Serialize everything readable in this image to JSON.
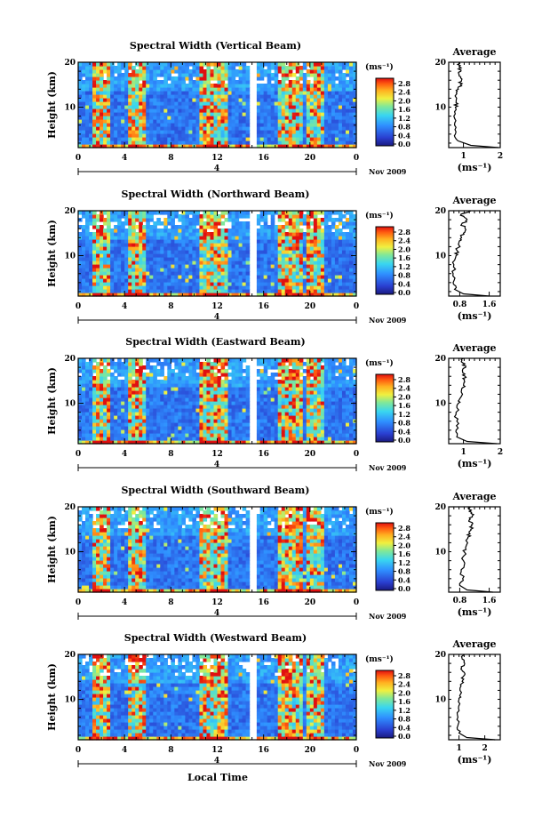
{
  "figure": {
    "ylabel": "Height (km)",
    "xlabel": "Local Time",
    "date_label": "Nov 2009",
    "unit_label": "(ms⁻¹)",
    "avg_title": "Average",
    "day_marker": "4",
    "colorbar_ticks": [
      "2.8",
      "2.4",
      "2.0",
      "1.6",
      "1.2",
      "0.8",
      "0.4",
      "0.0"
    ],
    "x_ticks": [
      "0",
      "4",
      "8",
      "12",
      "16",
      "20",
      "0"
    ],
    "y_ticks": [
      "10",
      "20"
    ]
  },
  "chart_data": [
    {
      "type": "heatmap",
      "title": "Spectral Width (Vertical Beam)",
      "xlabel": "Local Time",
      "ylabel": "Height (km)",
      "xlim": [
        0,
        24
      ],
      "ylim": [
        1,
        20
      ],
      "clim": [
        0.0,
        2.8
      ],
      "gap": [
        14.9,
        15.4
      ],
      "avg": {
        "title": "Average",
        "xlim": [
          0.6,
          2.0
        ],
        "x_ticks": [
          "1",
          "2"
        ],
        "profile": [
          [
            1.95,
            1
          ],
          [
            1.2,
            1.5
          ],
          [
            0.85,
            2.5
          ],
          [
            0.78,
            4
          ],
          [
            0.76,
            6
          ],
          [
            0.74,
            8
          ],
          [
            0.78,
            10
          ],
          [
            0.8,
            11
          ],
          [
            0.82,
            13
          ],
          [
            0.86,
            14
          ],
          [
            0.92,
            15
          ],
          [
            0.95,
            16
          ],
          [
            0.88,
            17
          ],
          [
            0.93,
            18
          ],
          [
            0.88,
            19
          ],
          [
            0.9,
            20
          ]
        ]
      }
    },
    {
      "type": "heatmap",
      "title": "Spectral Width (Northward Beam)",
      "xlabel": "Local Time",
      "ylabel": "Height (km)",
      "xlim": [
        0,
        24
      ],
      "ylim": [
        1,
        20
      ],
      "clim": [
        0.0,
        2.8
      ],
      "gap": [
        14.9,
        15.4
      ],
      "avg": {
        "title": "Average",
        "xlim": [
          0.5,
          1.9
        ],
        "x_ticks": [
          "0.8",
          "1.6"
        ],
        "profile": [
          [
            1.6,
            1
          ],
          [
            0.9,
            1.5
          ],
          [
            0.66,
            2.5
          ],
          [
            0.62,
            4
          ],
          [
            0.62,
            6
          ],
          [
            0.64,
            8
          ],
          [
            0.7,
            10
          ],
          [
            0.74,
            11
          ],
          [
            0.78,
            13
          ],
          [
            0.85,
            14
          ],
          [
            0.9,
            15
          ],
          [
            0.95,
            16
          ],
          [
            0.85,
            17
          ],
          [
            1.0,
            18
          ],
          [
            0.82,
            19
          ],
          [
            1.1,
            20
          ]
        ]
      }
    },
    {
      "type": "heatmap",
      "title": "Spectral Width (Eastward Beam)",
      "xlabel": "Local Time",
      "ylabel": "Height (km)",
      "xlim": [
        0,
        24
      ],
      "ylim": [
        1,
        20
      ],
      "clim": [
        0.0,
        2.8
      ],
      "gap": [
        14.9,
        15.4
      ],
      "avg": {
        "title": "Average",
        "xlim": [
          0.6,
          2.0
        ],
        "x_ticks": [
          "1",
          "2"
        ],
        "profile": [
          [
            1.9,
            1
          ],
          [
            1.1,
            1.5
          ],
          [
            0.82,
            2.5
          ],
          [
            0.8,
            4
          ],
          [
            0.82,
            6
          ],
          [
            0.8,
            8
          ],
          [
            0.86,
            10
          ],
          [
            0.9,
            11
          ],
          [
            0.95,
            13
          ],
          [
            1.0,
            14
          ],
          [
            1.02,
            15
          ],
          [
            1.05,
            16
          ],
          [
            0.98,
            17
          ],
          [
            1.06,
            18
          ],
          [
            0.98,
            19
          ],
          [
            1.0,
            20
          ]
        ]
      }
    },
    {
      "type": "heatmap",
      "title": "Spectral Width (Southward Beam)",
      "xlabel": "Local Time",
      "ylabel": "Height (km)",
      "xlim": [
        0,
        24
      ],
      "ylim": [
        1,
        20
      ],
      "clim": [
        0.0,
        2.8
      ],
      "gap": [
        14.9,
        15.4
      ],
      "avg": {
        "title": "Average",
        "xlim": [
          0.5,
          1.9
        ],
        "x_ticks": [
          "0.8",
          "1.6"
        ],
        "profile": [
          [
            1.7,
            1
          ],
          [
            1.0,
            1.5
          ],
          [
            0.8,
            2.5
          ],
          [
            0.88,
            4
          ],
          [
            0.84,
            6
          ],
          [
            0.9,
            8
          ],
          [
            0.92,
            10
          ],
          [
            0.96,
            11
          ],
          [
            1.02,
            13
          ],
          [
            1.08,
            14
          ],
          [
            1.1,
            15
          ],
          [
            1.12,
            16
          ],
          [
            1.05,
            17
          ],
          [
            1.14,
            18
          ],
          [
            1.06,
            19
          ],
          [
            1.1,
            20
          ]
        ]
      }
    },
    {
      "type": "heatmap",
      "title": "Spectral Width (Westward Beam)",
      "xlabel": "Local Time",
      "ylabel": "Height (km)",
      "xlim": [
        0,
        24
      ],
      "ylim": [
        1,
        20
      ],
      "clim": [
        0.0,
        2.8
      ],
      "gap": [
        14.9,
        15.4
      ],
      "avg": {
        "title": "Average",
        "xlim": [
          0.6,
          2.6
        ],
        "x_ticks": [
          "1",
          "2"
        ],
        "profile": [
          [
            2.4,
            1
          ],
          [
            1.3,
            1.5
          ],
          [
            1.0,
            2.5
          ],
          [
            0.95,
            4
          ],
          [
            0.96,
            6
          ],
          [
            0.98,
            8
          ],
          [
            1.0,
            10
          ],
          [
            1.04,
            11
          ],
          [
            1.08,
            13
          ],
          [
            1.12,
            14
          ],
          [
            1.15,
            15
          ],
          [
            1.2,
            16
          ],
          [
            1.1,
            17
          ],
          [
            1.22,
            18
          ],
          [
            1.12,
            19
          ],
          [
            1.18,
            20
          ]
        ]
      }
    }
  ]
}
